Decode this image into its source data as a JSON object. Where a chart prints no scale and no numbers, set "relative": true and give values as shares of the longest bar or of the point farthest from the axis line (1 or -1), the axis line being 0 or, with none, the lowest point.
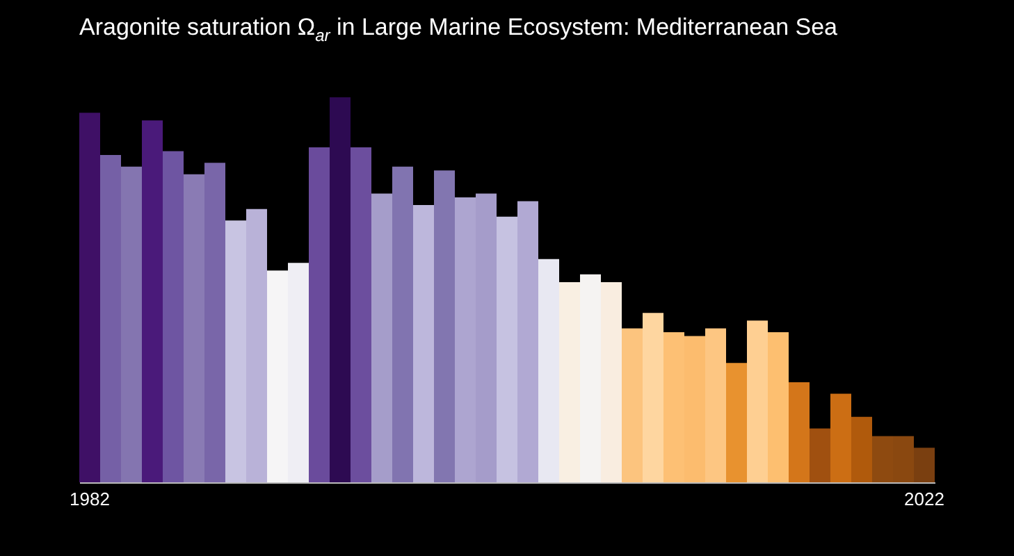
{
  "chart_data": {
    "type": "bar",
    "title": "Aragonite saturation Ω$_{ar}$ in Large Marine Ecosystem: Mediterranean Sea",
    "relative": true,
    "categories": [
      "1982",
      null,
      null,
      null,
      null,
      null,
      null,
      null,
      null,
      null,
      null,
      null,
      null,
      null,
      null,
      null,
      null,
      null,
      null,
      null,
      null,
      null,
      null,
      null,
      null,
      null,
      null,
      null,
      null,
      null,
      null,
      null,
      null,
      null,
      null,
      null,
      null,
      null,
      null,
      null,
      "2022"
    ],
    "values": [
      0.96,
      0.85,
      0.82,
      0.94,
      0.86,
      0.8,
      0.83,
      0.68,
      0.71,
      0.55,
      0.57,
      0.87,
      1,
      0.87,
      0.75,
      0.82,
      0.72,
      0.81,
      0.74,
      0.75,
      0.69,
      0.73,
      0.58,
      0.52,
      0.54,
      0.52,
      0.4,
      0.44,
      0.39,
      0.38,
      0.4,
      0.31,
      0.42,
      0.39,
      0.26,
      0.14,
      0.23,
      0.17,
      0.12,
      0.12,
      0.09
    ],
    "colors": [
      "#3f1066",
      "#7560a6",
      "#8475b0",
      "#4a1a7a",
      "#6e55a2",
      "#8a7bb4",
      "#7966a9",
      "#c8c4e2",
      "#b9b2d8",
      "#f6f5f6",
      "#efeef4",
      "#6a4b9c",
      "#2d0a52",
      "#6c4e9e",
      "#a59dca",
      "#8174b0",
      "#bdb7dc",
      "#8276b0",
      "#ada5d0",
      "#a59cca",
      "#c6c2e1",
      "#b1a9d3",
      "#e8e8f2",
      "#f9efe2",
      "#f5f3f2",
      "#f9ede0",
      "#fcc47e",
      "#fed6a0",
      "#fdc074",
      "#fcbc6e",
      "#fdc682",
      "#e8922f",
      "#fecf92",
      "#fdbf70",
      "#d4761a",
      "#a05010",
      "#cc6e14",
      "#b05a0c",
      "#8e4a10",
      "#8a4810",
      "#7a3f10"
    ]
  }
}
